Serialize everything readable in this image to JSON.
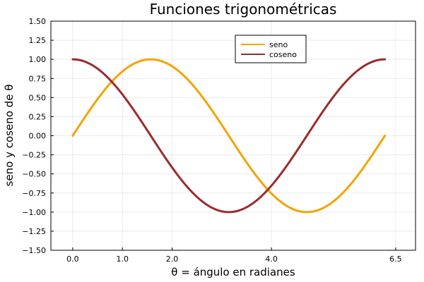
{
  "chart_data": {
    "type": "line",
    "title": "Funciones trigonométricas",
    "xlabel": "θ = ángulo en radianes",
    "ylabel": "seno y coseno de θ",
    "xlim": [
      -0.44,
      6.9
    ],
    "ylim": [
      -1.5,
      1.5
    ],
    "x_ticks": [
      0,
      1,
      2,
      4,
      6.5
    ],
    "x_tick_labels": [
      "0.0",
      "1.0",
      "2.0",
      "4.0",
      "6.5"
    ],
    "y_ticks": [
      -1.5,
      -1.25,
      -1.0,
      -0.75,
      -0.5,
      -0.25,
      0.0,
      0.25,
      0.5,
      0.75,
      1.0,
      1.25,
      1.5
    ],
    "y_tick_labels": [
      "−1.50",
      "−1.25",
      "−1.00",
      "−0.75",
      "−0.50",
      "−0.25",
      "0.00",
      "0.25",
      "0.50",
      "0.75",
      "1.00",
      "1.25",
      "1.50"
    ],
    "grid": true,
    "legend_position": "top-right",
    "x_range": [
      0,
      6.2832
    ],
    "series": [
      {
        "name": "seno",
        "function": "sin",
        "color": "#F5A300",
        "x": [
          0,
          0.5236,
          1.0472,
          1.5708,
          2.0944,
          2.618,
          3.1416,
          3.6652,
          4.1888,
          4.7124,
          5.236,
          5.7596,
          6.2832
        ],
        "values": [
          0,
          0.5,
          0.866,
          1,
          0.866,
          0.5,
          0,
          -0.5,
          -0.866,
          -1,
          -0.866,
          -0.5,
          0
        ]
      },
      {
        "name": "coseno",
        "function": "cos",
        "color": "#9B2B2B",
        "x": [
          0,
          0.5236,
          1.0472,
          1.5708,
          2.0944,
          2.618,
          3.1416,
          3.6652,
          4.1888,
          4.7124,
          5.236,
          5.7596,
          6.2832
        ],
        "values": [
          1,
          0.866,
          0.5,
          0,
          -0.5,
          -0.866,
          -1,
          -0.866,
          -0.5,
          0,
          0.5,
          0.866,
          1
        ]
      }
    ]
  }
}
